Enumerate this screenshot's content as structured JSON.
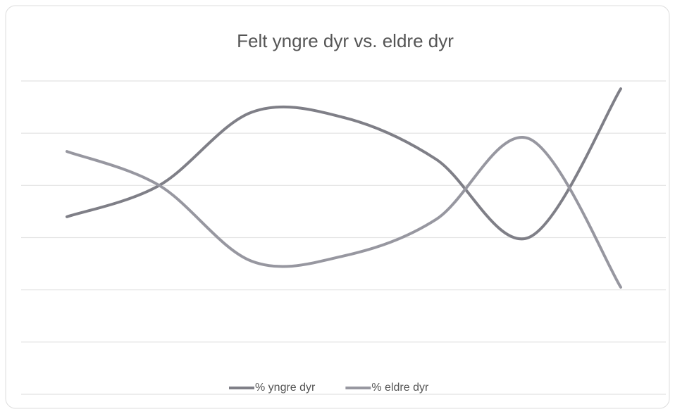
{
  "chart_data": {
    "type": "line",
    "title": "Felt yngre dyr vs. eldre dyr",
    "categories": [
      null,
      null,
      null,
      null,
      null,
      null,
      null
    ],
    "series": [
      {
        "name": "% yngre dyr",
        "color": "#7f7f87",
        "values": [
          3.4,
          4.0,
          5.4,
          5.3,
          4.5,
          3.0,
          5.85
        ]
      },
      {
        "name": "% eldre dyr",
        "color": "#9797a0",
        "values": [
          4.65,
          4.0,
          2.55,
          2.65,
          3.35,
          4.9,
          2.05
        ]
      }
    ],
    "ylim": [
      0,
      6
    ],
    "yticks": [
      0,
      1,
      2,
      3,
      4,
      5,
      6
    ],
    "grid": true,
    "smooth": true,
    "legend": "bottom"
  }
}
